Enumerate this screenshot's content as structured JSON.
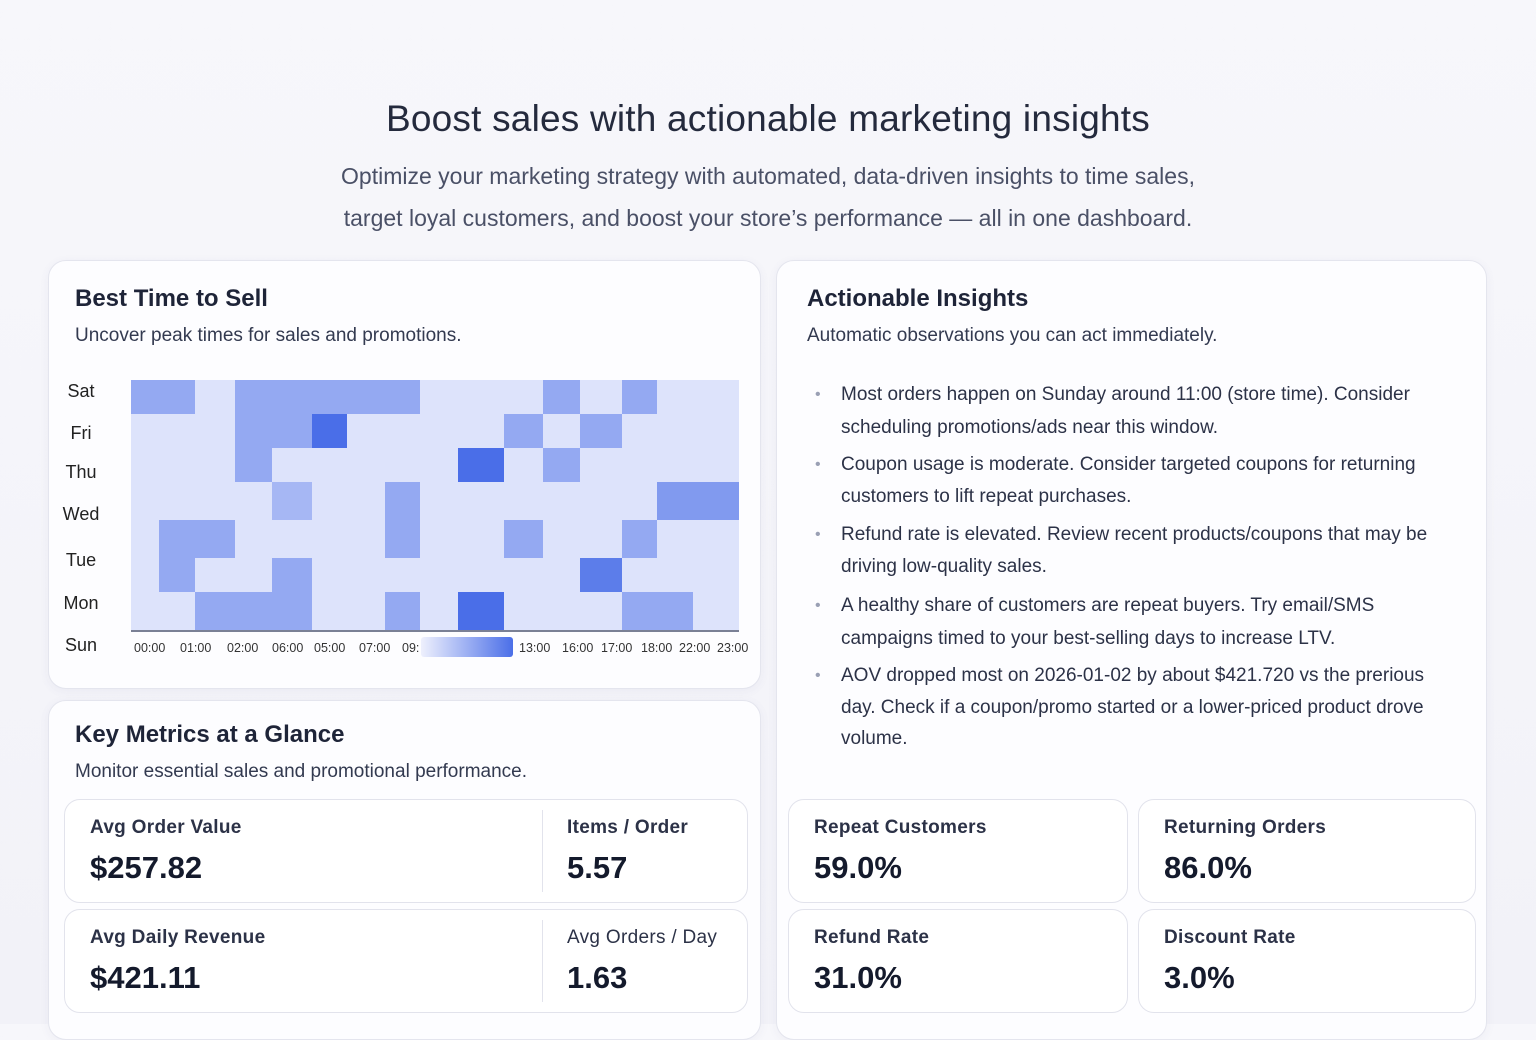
{
  "hero": {
    "title": "Boost sales with actionable marketing insights",
    "subtitle_line1": "Optimize your marketing strategy with automated, data-driven insights to time sales,",
    "subtitle_line2": "target loyal customers, and boost your store’s performance — all in one dashboard."
  },
  "best_time": {
    "title": "Best Time to Sell",
    "description": "Uncover peak times for sales and promotions."
  },
  "chart_data": {
    "type": "heatmap",
    "rows": [
      "Sat",
      "Fri",
      "Thu",
      "Wed",
      "Tue",
      "Mon",
      "Sun"
    ],
    "x_tick_labels": [
      "00:00",
      "01:00",
      "02:00",
      "06:00",
      "05:00",
      "07:00",
      "09:",
      "13:00",
      "16:00",
      "17:00",
      "18:00",
      "22:00",
      "23:00"
    ],
    "values": [
      [
        2,
        2,
        0,
        2,
        2,
        2,
        2,
        2,
        0,
        0,
        0,
        2,
        0,
        2,
        0,
        0
      ],
      [
        0,
        0,
        0,
        2,
        2,
        4,
        0,
        0,
        0,
        0,
        2,
        0,
        2,
        0,
        0,
        0
      ],
      [
        0,
        0,
        0,
        2,
        0,
        0,
        0,
        0,
        0,
        4,
        0,
        2,
        0,
        0,
        0,
        0
      ],
      [
        0,
        0,
        0,
        0,
        1.5,
        0,
        0,
        2,
        0,
        0,
        0,
        0,
        0,
        0,
        2.5,
        2.5
      ],
      [
        0,
        2,
        2,
        0,
        0,
        0,
        0,
        2,
        0,
        0,
        2,
        0,
        0,
        2,
        0,
        0
      ],
      [
        0,
        2,
        0,
        0,
        2,
        0,
        0,
        0,
        0,
        0,
        0,
        0,
        3.5,
        0,
        0,
        0
      ],
      [
        0,
        0,
        2,
        2,
        2,
        0,
        0,
        2,
        0,
        4,
        0,
        0,
        0,
        2,
        2,
        0
      ]
    ],
    "color_low": "#dde3fb",
    "color_high": "#4a6ee8",
    "legend": "color gradient bar in x-axis"
  },
  "insights": {
    "title": "Actionable Insights",
    "description": "Automatic observations you can act immediately.",
    "items": [
      "Most orders happen on Sunday around 11:00 (store time). Consider scheduling promotions/ads near this window.",
      "Coupon usage is moderate. Consider targeted coupons for returning customers to lift repeat purchases.",
      "Refund rate is elevated. Review recent products/coupons that may be driving low-quality sales.",
      "A healthy share of customers are repeat buyers. Try email/SMS campaigns timed to your best-selling days to increase LTV.",
      "AOV dropped most on 2026-01-02 by about $421.720 vs the prerious day. Check if a coupon/promo started or a lower-priced product drove volume."
    ]
  },
  "metrics": {
    "title": "Key Metrics at a Glance",
    "description": "Monitor essential sales and promotional performance.",
    "aov": {
      "label": "Avg Order Value",
      "value": "$257.82"
    },
    "items_order": {
      "label": "Items / Order",
      "value": "5.57"
    },
    "daily_rev": {
      "label": "Avg Daily Revenue",
      "value": "$421.11"
    },
    "orders_day": {
      "label": "Avg Orders / Day",
      "value": "1.63"
    },
    "repeat": {
      "label": "Repeat Customers",
      "value": "59.0%"
    },
    "returning": {
      "label": "Returning Orders",
      "value": "86.0%"
    },
    "refund": {
      "label": "Refund Rate",
      "value": "31.0%"
    },
    "discount": {
      "label": "Discount Rate",
      "value": "3.0%"
    }
  }
}
